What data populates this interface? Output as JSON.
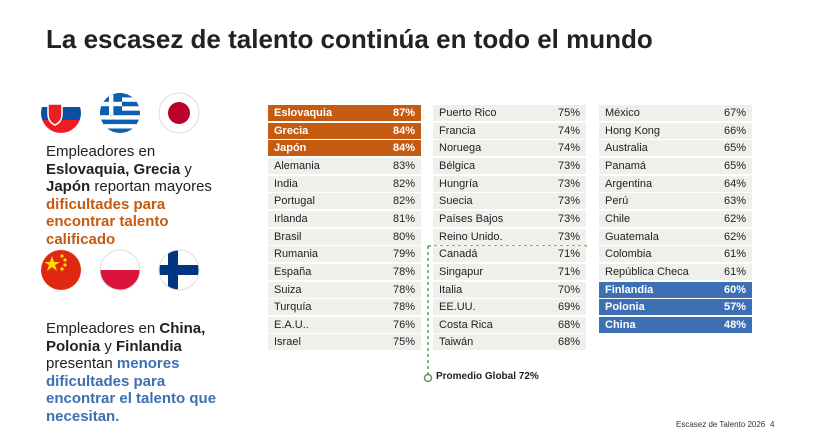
{
  "title": "La escasez de talento continúa en todo el mundo",
  "left": {
    "top_lines": [
      [
        {
          "text": "Empleadores en"
        }
      ],
      [
        {
          "text": "Eslovaquia, Grecia",
          "bold": true
        },
        {
          "text": " y"
        }
      ],
      [
        {
          "text": "Japón",
          "bold": true
        },
        {
          "text": " reportan mayores"
        }
      ],
      [
        {
          "text": "dificultades para",
          "bold": true,
          "color": "#c55a11"
        }
      ],
      [
        {
          "text": "encontrar talento",
          "bold": true,
          "color": "#c55a11"
        }
      ],
      [
        {
          "text": "calificado",
          "bold": true,
          "color": "#c55a11"
        }
      ]
    ],
    "bottom_lines": [
      [
        {
          "text": "Empleadores en "
        },
        {
          "text": "China,",
          "bold": true
        }
      ],
      [
        {
          "text": "Polonia",
          "bold": true
        },
        {
          "text": " y "
        },
        {
          "text": "Finlandia",
          "bold": true
        }
      ],
      [
        {
          "text": "presentan "
        },
        {
          "text": "menores",
          "bold": true,
          "color": "#3d6fb4"
        }
      ],
      [
        {
          "text": "dificultades para",
          "bold": true,
          "color": "#3d6fb4"
        }
      ],
      [
        {
          "text": "encontrar el talento que",
          "bold": true,
          "color": "#3d6fb4"
        }
      ],
      [
        {
          "text": "necesitan.",
          "bold": true,
          "color": "#3d6fb4"
        }
      ]
    ]
  },
  "table": {
    "columns": [
      {
        "rows": [
          {
            "country": "Eslovaquia",
            "value": "87%",
            "highlight": "#c55a11"
          },
          {
            "country": "Grecia",
            "value": "84%",
            "highlight": "#c55a11"
          },
          {
            "country": "Japón",
            "value": "84%",
            "highlight": "#c55a11"
          },
          {
            "country": "Alemania",
            "value": "83%"
          },
          {
            "country": "India",
            "value": "82%"
          },
          {
            "country": "Portugal",
            "value": "82%"
          },
          {
            "country": "Irlanda",
            "value": "81%"
          },
          {
            "country": "Brasil",
            "value": "80%"
          },
          {
            "country": "Rumania",
            "value": "79%"
          },
          {
            "country": "España",
            "value": "78%"
          },
          {
            "country": "Suiza",
            "value": "78%"
          },
          {
            "country": "Turquía",
            "value": "78%"
          },
          {
            "country": "E.A.U..",
            "value": "76%"
          },
          {
            "country": "Israel",
            "value": "75%"
          }
        ]
      },
      {
        "rows": [
          {
            "country": "Puerto Rico",
            "value": "75%"
          },
          {
            "country": "Francia",
            "value": "74%"
          },
          {
            "country": "Noruega",
            "value": "74%"
          },
          {
            "country": "Bélgica",
            "value": "73%"
          },
          {
            "country": "Hungría",
            "value": "73%"
          },
          {
            "country": "Suecia",
            "value": "73%"
          },
          {
            "country": "Países Bajos",
            "value": "73%"
          },
          {
            "country": "Reino Unido.",
            "value": "73%"
          },
          {
            "country": "Canadá",
            "value": "71%"
          },
          {
            "country": "Singapur",
            "value": "71%"
          },
          {
            "country": "Italia",
            "value": "70%"
          },
          {
            "country": "EE.UU.",
            "value": "69%"
          },
          {
            "country": "Costa Rica",
            "value": "68%"
          },
          {
            "country": "Taiwán",
            "value": "68%"
          }
        ]
      },
      {
        "rows": [
          {
            "country": "México",
            "value": "67%"
          },
          {
            "country": "Hong Kong",
            "value": "66%"
          },
          {
            "country": "Australia",
            "value": "65%"
          },
          {
            "country": "Panamá",
            "value": "65%"
          },
          {
            "country": "Argentina",
            "value": "64%"
          },
          {
            "country": "Perú",
            "value": "63%"
          },
          {
            "country": "Chile",
            "value": "62%"
          },
          {
            "country": "Guatemala",
            "value": "62%"
          },
          {
            "country": "Colombia",
            "value": "61%"
          },
          {
            "country": "República Checa",
            "value": "61%"
          },
          {
            "country": "Finlandia",
            "value": "60%",
            "highlight": "#3d6fb4"
          },
          {
            "country": "Polonia",
            "value": "57%",
            "highlight": "#3d6fb4"
          },
          {
            "country": "China",
            "value": "48%",
            "highlight": "#3d6fb4"
          }
        ]
      }
    ]
  },
  "annotation": "Promedio Global 72%",
  "footer": {
    "text": "Escasez de Talento 2026",
    "page": "4"
  }
}
